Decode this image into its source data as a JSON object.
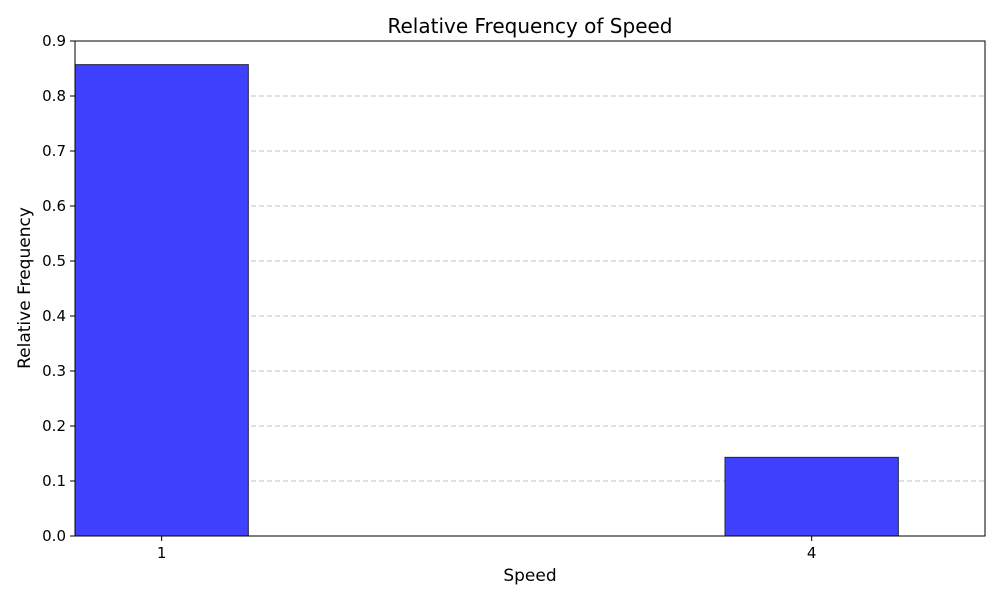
{
  "chart_data": {
    "type": "bar",
    "title": "Relative Frequency of Speed",
    "xlabel": "Speed",
    "ylabel": "Relative Frequency",
    "x": [
      1,
      4
    ],
    "values": [
      0.857,
      0.143
    ],
    "xlim": [
      0.6,
      4.8
    ],
    "ylim": [
      0,
      0.9
    ],
    "yticks": [
      "0.0",
      "0.1",
      "0.2",
      "0.3",
      "0.4",
      "0.5",
      "0.6",
      "0.7",
      "0.8",
      "0.9"
    ],
    "xticks": [
      "1",
      "4"
    ],
    "bar_width": 0.8,
    "bar_color": "#4040ff",
    "grid": "y-dashed"
  }
}
